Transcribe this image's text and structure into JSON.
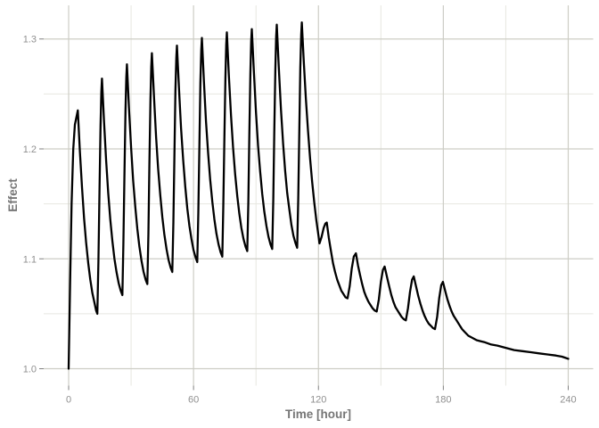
{
  "colors": {
    "background": "#ffffff",
    "line": "#000000",
    "grid_major": "#cdcdc5",
    "grid_minor": "#e7e7e0",
    "tick_mark": "#7f7f7f",
    "tick_label": "#8f8f8f",
    "axis_title": "#767676"
  },
  "chart_data": {
    "type": "line",
    "title": "",
    "xlabel": "Time [hour]",
    "ylabel": "Effect",
    "xlim": [
      -12,
      252
    ],
    "ylim": [
      0.9846,
      1.3306
    ],
    "grid": true,
    "legend": false,
    "x_ticks": {
      "values": [
        0,
        60,
        120,
        180,
        240
      ],
      "labels": [
        "0",
        "60",
        "120",
        "180",
        "240"
      ]
    },
    "y_ticks": {
      "values": [
        1.0,
        1.1,
        1.2,
        1.3
      ],
      "labels": [
        "1.0",
        "1.1",
        "1.2",
        "1.3"
      ]
    },
    "x_minor_gridlines": [
      30,
      90,
      150,
      210
    ],
    "y_minor_gridlines": [
      1.05,
      1.15,
      1.25
    ],
    "series": [
      {
        "name": "Effect",
        "color": "#000000",
        "points": [
          [
            0,
            1.0
          ],
          [
            0.7,
            1.08
          ],
          [
            1.4,
            1.15
          ],
          [
            2.2,
            1.2
          ],
          [
            3,
            1.222
          ],
          [
            4.4,
            1.235
          ],
          [
            5.4,
            1.198
          ],
          [
            6.4,
            1.165
          ],
          [
            7.4,
            1.137
          ],
          [
            8.4,
            1.115
          ],
          [
            9.4,
            1.096
          ],
          [
            10.4,
            1.081
          ],
          [
            11.4,
            1.069
          ],
          [
            12.4,
            1.06
          ],
          [
            13.2,
            1.053
          ],
          [
            13.8,
            1.05
          ],
          [
            14.3,
            1.097
          ],
          [
            14.8,
            1.161
          ],
          [
            15.3,
            1.221
          ],
          [
            15.7,
            1.252
          ],
          [
            16,
            1.264
          ],
          [
            17,
            1.225
          ],
          [
            18,
            1.189
          ],
          [
            19,
            1.16
          ],
          [
            20,
            1.136
          ],
          [
            21,
            1.116
          ],
          [
            22,
            1.1
          ],
          [
            23,
            1.088
          ],
          [
            24,
            1.078
          ],
          [
            25,
            1.071
          ],
          [
            25.8,
            1.067
          ],
          [
            26.3,
            1.113
          ],
          [
            26.8,
            1.176
          ],
          [
            27.3,
            1.235
          ],
          [
            27.7,
            1.265
          ],
          [
            28,
            1.277
          ],
          [
            29,
            1.237
          ],
          [
            30,
            1.201
          ],
          [
            31,
            1.171
          ],
          [
            32,
            1.147
          ],
          [
            33,
            1.127
          ],
          [
            34,
            1.111
          ],
          [
            35,
            1.098
          ],
          [
            36,
            1.088
          ],
          [
            37,
            1.081
          ],
          [
            37.8,
            1.077
          ],
          [
            38.3,
            1.123
          ],
          [
            38.8,
            1.186
          ],
          [
            39.3,
            1.245
          ],
          [
            39.7,
            1.275
          ],
          [
            40,
            1.287
          ],
          [
            41,
            1.247
          ],
          [
            42,
            1.211
          ],
          [
            43,
            1.182
          ],
          [
            44,
            1.158
          ],
          [
            45,
            1.138
          ],
          [
            46,
            1.122
          ],
          [
            47,
            1.109
          ],
          [
            48,
            1.099
          ],
          [
            49,
            1.092
          ],
          [
            49.8,
            1.088
          ],
          [
            50.3,
            1.133
          ],
          [
            50.8,
            1.195
          ],
          [
            51.3,
            1.253
          ],
          [
            51.7,
            1.283
          ],
          [
            52,
            1.294
          ],
          [
            53,
            1.255
          ],
          [
            54,
            1.219
          ],
          [
            55,
            1.19
          ],
          [
            56,
            1.166
          ],
          [
            57,
            1.146
          ],
          [
            58,
            1.13
          ],
          [
            59,
            1.118
          ],
          [
            60,
            1.108
          ],
          [
            61,
            1.101
          ],
          [
            61.8,
            1.097
          ],
          [
            62.3,
            1.142
          ],
          [
            62.8,
            1.203
          ],
          [
            63.3,
            1.26
          ],
          [
            63.7,
            1.29
          ],
          [
            64,
            1.301
          ],
          [
            65,
            1.261
          ],
          [
            66,
            1.225
          ],
          [
            67,
            1.196
          ],
          [
            68,
            1.172
          ],
          [
            69,
            1.152
          ],
          [
            70,
            1.136
          ],
          [
            71,
            1.123
          ],
          [
            72,
            1.113
          ],
          [
            73,
            1.106
          ],
          [
            73.8,
            1.102
          ],
          [
            74.3,
            1.147
          ],
          [
            74.8,
            1.208
          ],
          [
            75.3,
            1.265
          ],
          [
            75.7,
            1.295
          ],
          [
            76,
            1.306
          ],
          [
            77,
            1.266
          ],
          [
            78,
            1.23
          ],
          [
            79,
            1.201
          ],
          [
            80,
            1.177
          ],
          [
            81,
            1.157
          ],
          [
            82,
            1.141
          ],
          [
            83,
            1.128
          ],
          [
            84,
            1.118
          ],
          [
            85,
            1.111
          ],
          [
            85.8,
            1.107
          ],
          [
            86.3,
            1.151
          ],
          [
            86.8,
            1.212
          ],
          [
            87.3,
            1.269
          ],
          [
            87.7,
            1.298
          ],
          [
            88,
            1.309
          ],
          [
            89,
            1.269
          ],
          [
            90,
            1.233
          ],
          [
            91,
            1.203
          ],
          [
            92,
            1.179
          ],
          [
            93,
            1.159
          ],
          [
            94,
            1.143
          ],
          [
            95,
            1.13
          ],
          [
            96,
            1.12
          ],
          [
            97,
            1.113
          ],
          [
            97.8,
            1.109
          ],
          [
            98.3,
            1.154
          ],
          [
            98.8,
            1.215
          ],
          [
            99.3,
            1.272
          ],
          [
            99.7,
            1.302
          ],
          [
            100,
            1.313
          ],
          [
            101,
            1.272
          ],
          [
            102,
            1.236
          ],
          [
            103,
            1.205
          ],
          [
            104,
            1.18
          ],
          [
            105,
            1.16
          ],
          [
            106,
            1.145
          ],
          [
            107,
            1.131
          ],
          [
            108,
            1.121
          ],
          [
            109,
            1.114
          ],
          [
            109.8,
            1.11
          ],
          [
            110.3,
            1.155
          ],
          [
            110.8,
            1.217
          ],
          [
            111.3,
            1.274
          ],
          [
            111.7,
            1.304
          ],
          [
            112,
            1.315
          ],
          [
            113,
            1.278
          ],
          [
            114,
            1.245
          ],
          [
            115,
            1.216
          ],
          [
            116,
            1.191
          ],
          [
            117,
            1.17
          ],
          [
            118,
            1.151
          ],
          [
            119,
            1.135
          ],
          [
            120,
            1.121
          ],
          [
            120.5,
            1.114
          ],
          [
            121.5,
            1.12
          ],
          [
            122.5,
            1.128
          ],
          [
            123.3,
            1.132
          ],
          [
            124,
            1.133
          ],
          [
            125,
            1.119
          ],
          [
            126,
            1.107
          ],
          [
            127,
            1.096
          ],
          [
            128,
            1.088
          ],
          [
            129,
            1.081
          ],
          [
            130,
            1.076
          ],
          [
            131,
            1.071
          ],
          [
            132,
            1.068
          ],
          [
            133,
            1.065
          ],
          [
            134,
            1.064
          ],
          [
            135,
            1.075
          ],
          [
            136,
            1.091
          ],
          [
            137,
            1.102
          ],
          [
            138,
            1.105
          ],
          [
            139,
            1.094
          ],
          [
            140,
            1.085
          ],
          [
            141,
            1.077
          ],
          [
            142,
            1.07
          ],
          [
            143,
            1.065
          ],
          [
            144,
            1.061
          ],
          [
            145,
            1.058
          ],
          [
            146,
            1.055
          ],
          [
            147,
            1.053
          ],
          [
            148,
            1.052
          ],
          [
            149,
            1.063
          ],
          [
            150,
            1.079
          ],
          [
            151,
            1.09
          ],
          [
            151.8,
            1.093
          ],
          [
            153,
            1.083
          ],
          [
            154,
            1.075
          ],
          [
            155,
            1.067
          ],
          [
            156,
            1.061
          ],
          [
            157,
            1.056
          ],
          [
            158,
            1.053
          ],
          [
            159,
            1.05
          ],
          [
            160,
            1.047
          ],
          [
            161,
            1.045
          ],
          [
            162,
            1.044
          ],
          [
            163,
            1.055
          ],
          [
            164,
            1.07
          ],
          [
            165,
            1.081
          ],
          [
            165.8,
            1.084
          ],
          [
            167,
            1.074
          ],
          [
            168,
            1.066
          ],
          [
            169,
            1.059
          ],
          [
            170,
            1.053
          ],
          [
            171,
            1.048
          ],
          [
            172,
            1.044
          ],
          [
            173,
            1.041
          ],
          [
            174,
            1.039
          ],
          [
            175,
            1.037
          ],
          [
            176,
            1.036
          ],
          [
            177,
            1.047
          ],
          [
            178,
            1.064
          ],
          [
            179,
            1.076
          ],
          [
            179.8,
            1.079
          ],
          [
            181,
            1.07
          ],
          [
            182,
            1.063
          ],
          [
            183,
            1.057
          ],
          [
            184,
            1.052
          ],
          [
            185,
            1.048
          ],
          [
            186,
            1.045
          ],
          [
            187,
            1.042
          ],
          [
            188,
            1.039
          ],
          [
            189,
            1.036
          ],
          [
            190,
            1.034
          ],
          [
            192,
            1.03
          ],
          [
            194,
            1.028
          ],
          [
            196,
            1.026
          ],
          [
            198,
            1.025
          ],
          [
            200,
            1.024
          ],
          [
            203,
            1.022
          ],
          [
            206,
            1.021
          ],
          [
            210,
            1.019
          ],
          [
            214,
            1.017
          ],
          [
            218,
            1.016
          ],
          [
            222,
            1.015
          ],
          [
            226,
            1.014
          ],
          [
            230,
            1.013
          ],
          [
            234,
            1.012
          ],
          [
            237,
            1.011
          ],
          [
            240,
            1.009
          ]
        ]
      }
    ]
  }
}
